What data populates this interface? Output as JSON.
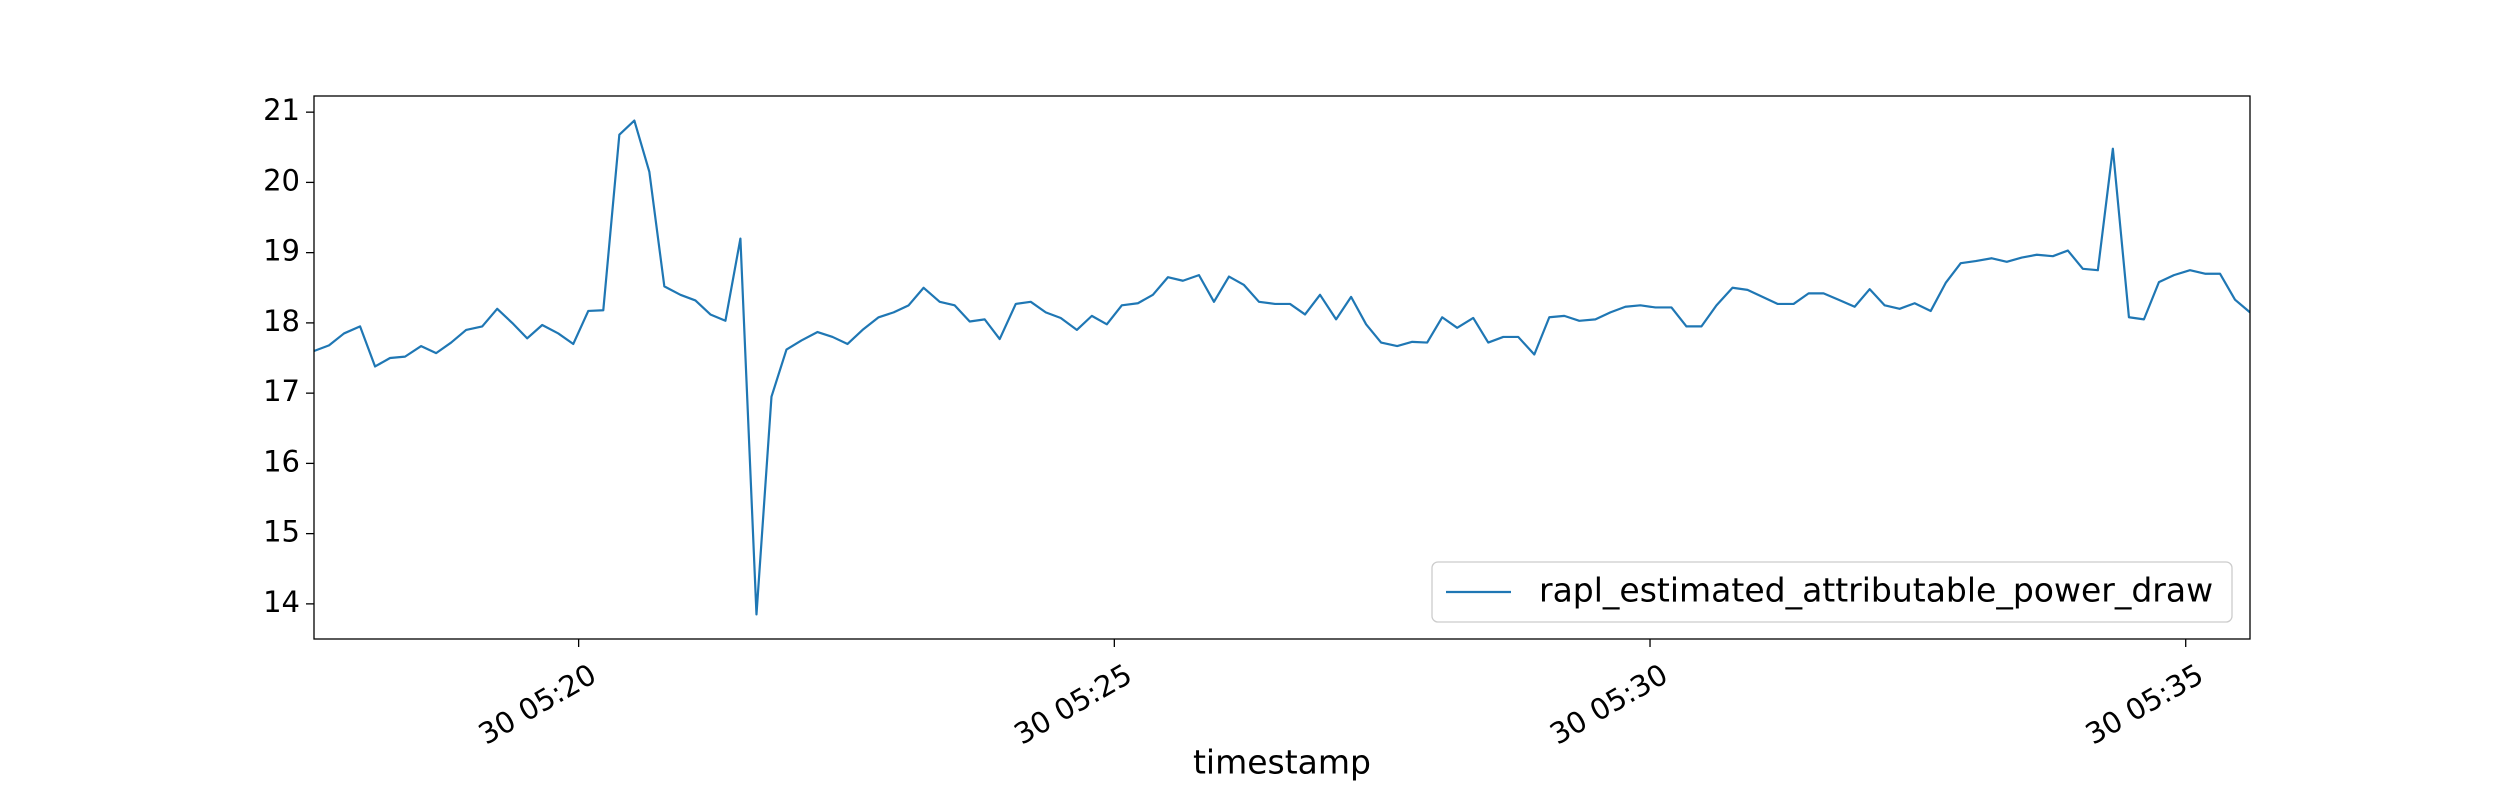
{
  "chart_data": {
    "type": "line",
    "x_label": "timestamp",
    "x": [
      17.53,
      17.67,
      17.81,
      17.96,
      18.1,
      18.24,
      18.38,
      18.53,
      18.67,
      18.81,
      18.95,
      19.1,
      19.24,
      19.38,
      19.52,
      19.66,
      19.81,
      19.95,
      20.09,
      20.23,
      20.38,
      20.52,
      20.66,
      20.8,
      20.95,
      21.09,
      21.23,
      21.37,
      21.51,
      21.66,
      21.8,
      21.94,
      22.08,
      22.23,
      22.37,
      22.51,
      22.65,
      22.8,
      22.94,
      23.08,
      23.22,
      23.37,
      23.51,
      23.65,
      23.79,
      23.93,
      24.08,
      24.22,
      24.36,
      24.5,
      24.65,
      24.79,
      24.93,
      25.07,
      25.22,
      25.36,
      25.5,
      25.64,
      25.79,
      25.93,
      26.07,
      26.21,
      26.35,
      26.5,
      26.64,
      26.78,
      26.92,
      27.07,
      27.21,
      27.35,
      27.49,
      27.64,
      27.78,
      27.92,
      28.06,
      28.2,
      28.35,
      28.49,
      28.63,
      28.77,
      28.92,
      29.06,
      29.2,
      29.34,
      29.49,
      29.63,
      29.77,
      29.91,
      30.05,
      30.2,
      30.34,
      30.48,
      30.62,
      30.77,
      30.91,
      31.05,
      31.19,
      31.34,
      31.48,
      31.62,
      31.76,
      31.91,
      32.05,
      32.19,
      32.33,
      32.47,
      32.62,
      32.76,
      32.9,
      33.04,
      33.19,
      33.33,
      33.47,
      33.61,
      33.76,
      33.9,
      34.04,
      34.18,
      34.32,
      34.47,
      34.61,
      34.75,
      34.89,
      35.04,
      35.18,
      35.32,
      35.46,
      35.6
    ],
    "series": [
      {
        "name": "rapl_estimated_attributable_power_draw",
        "color": "#1f77b4",
        "values": [
          17.6,
          17.68,
          17.85,
          17.95,
          17.38,
          17.5,
          17.52,
          17.67,
          17.57,
          17.72,
          17.9,
          17.95,
          18.2,
          18.0,
          17.78,
          17.97,
          17.85,
          17.7,
          18.17,
          18.18,
          20.68,
          20.88,
          20.15,
          18.52,
          18.4,
          18.32,
          18.12,
          18.03,
          19.2,
          13.85,
          16.95,
          17.62,
          17.75,
          17.87,
          17.8,
          17.7,
          17.9,
          18.08,
          18.15,
          18.25,
          18.5,
          18.3,
          18.25,
          18.02,
          18.05,
          17.77,
          18.27,
          18.3,
          18.15,
          18.07,
          17.9,
          18.1,
          17.98,
          18.25,
          18.28,
          18.4,
          18.65,
          18.6,
          18.68,
          18.3,
          18.66,
          18.54,
          18.3,
          18.27,
          18.27,
          18.12,
          18.4,
          18.05,
          18.37,
          17.98,
          17.72,
          17.67,
          17.73,
          17.72,
          18.08,
          17.93,
          18.07,
          17.72,
          17.8,
          17.8,
          17.55,
          18.08,
          18.1,
          18.03,
          18.05,
          18.15,
          18.23,
          18.25,
          18.22,
          18.22,
          17.95,
          17.95,
          18.25,
          18.5,
          18.47,
          18.37,
          18.27,
          18.27,
          18.42,
          18.42,
          18.33,
          18.23,
          18.48,
          18.25,
          18.2,
          18.28,
          18.17,
          18.57,
          18.85,
          18.88,
          18.92,
          18.87,
          18.93,
          18.97,
          18.95,
          19.03,
          18.77,
          18.75,
          20.48,
          18.08,
          18.05,
          18.58,
          18.68,
          18.75,
          18.7,
          18.7,
          18.33,
          18.15
        ]
      }
    ],
    "xlim": [
      17.53,
      35.6
    ],
    "xticks": [
      {
        "value": 20,
        "label": "30 05:20"
      },
      {
        "value": 25,
        "label": "30 05:25"
      },
      {
        "value": 30,
        "label": "30 05:30"
      },
      {
        "value": 35,
        "label": "30 05:35"
      }
    ],
    "ylim": [
      13.5,
      21.23
    ],
    "yticks": [
      14,
      15,
      16,
      17,
      18,
      19,
      20,
      21
    ],
    "legend": "lower right",
    "grid": false
  }
}
